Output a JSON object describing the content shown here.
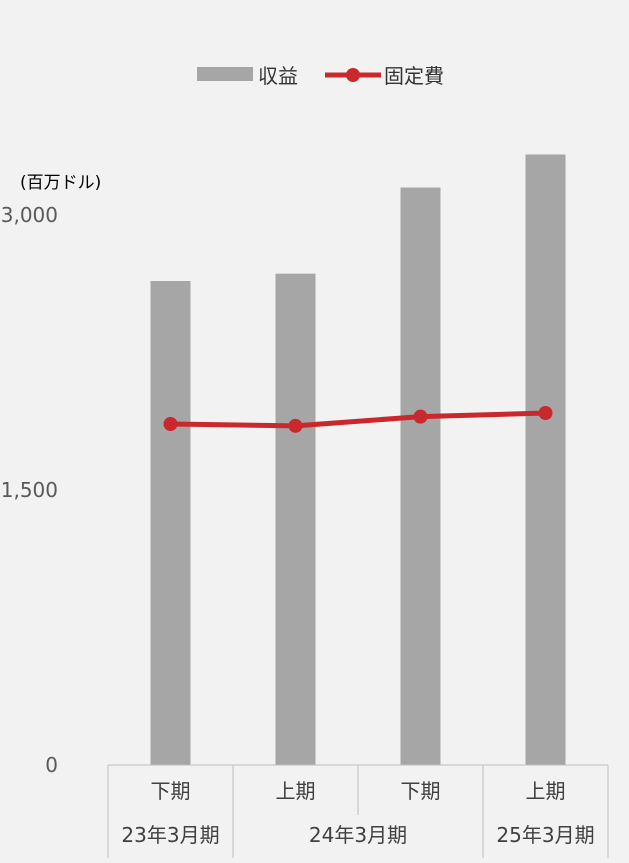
{
  "chart_data": {
    "type": "bar",
    "unit_label": "(百万ドル)",
    "categories": [
      "下期",
      "上期",
      "下期",
      "上期"
    ],
    "category_groups": [
      {
        "label": "23年3月期",
        "span": 1
      },
      {
        "label": "24年3月期",
        "span": 2
      },
      {
        "label": "25年3月期",
        "span": 1
      }
    ],
    "ylim": [
      0,
      3000
    ],
    "yticks": [
      {
        "value": 0,
        "label": "0"
      },
      {
        "value": 1500,
        "label": "1,500"
      },
      {
        "value": 3000,
        "label": "3,000"
      }
    ],
    "series": [
      {
        "name": "収益",
        "type": "bar",
        "color": "#a6a6a6",
        "values": [
          2640,
          2680,
          3150,
          3330
        ]
      },
      {
        "name": "固定費",
        "type": "line",
        "color": "#c9282d",
        "values": [
          1860,
          1850,
          1900,
          1920
        ]
      }
    ],
    "legend_position": "top-center",
    "background": "#f2f2f2",
    "grid": false
  }
}
